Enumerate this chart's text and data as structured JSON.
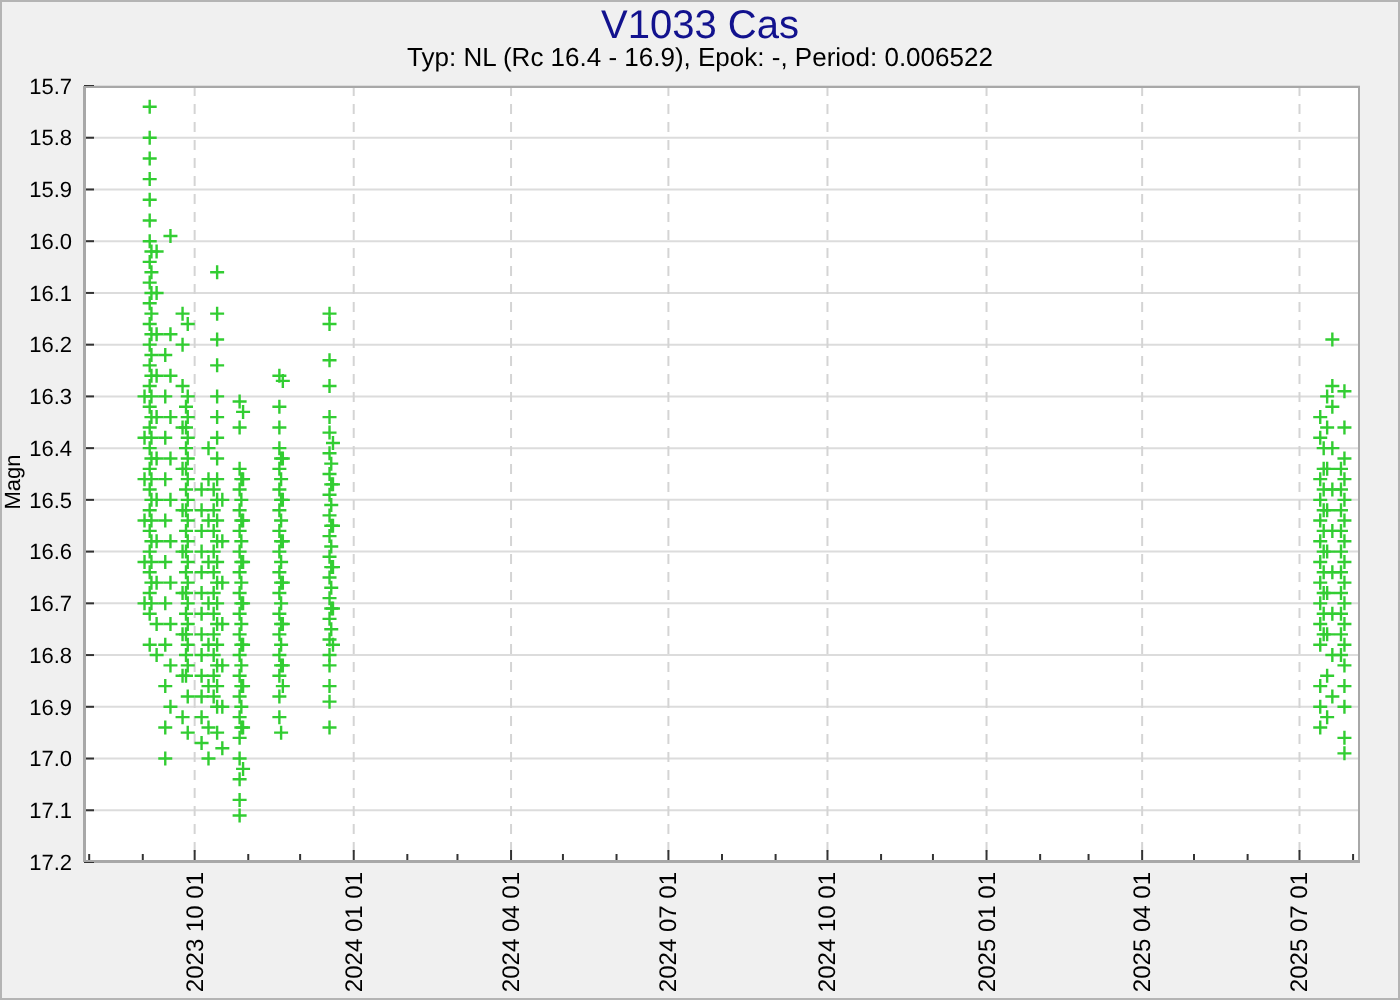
{
  "chart_data": {
    "type": "scatter",
    "title": "V1033 Cas",
    "subtitle": "Typ: NL (Rc 16.4 - 16.9), Epok: -, Period: 0.006522",
    "ylabel": "Magn",
    "xlim": [
      "2023-07-29",
      "2025-08-05"
    ],
    "xticks": [
      {
        "value": "2023-08-01",
        "label": null
      },
      {
        "value": "2023-09-01",
        "label": null
      },
      {
        "value": "2023-10-01",
        "label": "2023 10 01"
      },
      {
        "value": "2023-11-01",
        "label": null
      },
      {
        "value": "2023-12-01",
        "label": null
      },
      {
        "value": "2024-01-01",
        "label": "2024 01 01"
      },
      {
        "value": "2024-02-01",
        "label": null
      },
      {
        "value": "2024-03-01",
        "label": null
      },
      {
        "value": "2024-04-01",
        "label": "2024 04 01"
      },
      {
        "value": "2024-05-01",
        "label": null
      },
      {
        "value": "2024-06-01",
        "label": null
      },
      {
        "value": "2024-07-01",
        "label": "2024 07 01"
      },
      {
        "value": "2024-08-01",
        "label": null
      },
      {
        "value": "2024-09-01",
        "label": null
      },
      {
        "value": "2024-10-01",
        "label": "2024 10 01"
      },
      {
        "value": "2024-11-01",
        "label": null
      },
      {
        "value": "2024-12-01",
        "label": null
      },
      {
        "value": "2025-01-01",
        "label": "2025 01 01"
      },
      {
        "value": "2025-02-01",
        "label": null
      },
      {
        "value": "2025-03-01",
        "label": null
      },
      {
        "value": "2025-04-01",
        "label": "2025 04 01"
      },
      {
        "value": "2025-05-01",
        "label": null
      },
      {
        "value": "2025-06-01",
        "label": null
      },
      {
        "value": "2025-07-01",
        "label": "2025 07 01"
      },
      {
        "value": "2025-08-01",
        "label": null
      }
    ],
    "ylim": [
      17.2,
      15.7
    ],
    "yticks": [
      15.7,
      15.8,
      15.9,
      {
        "value": 16,
        "label": "16.0"
      },
      16.1,
      16.2,
      16.3,
      16.4,
      16.5,
      16.6,
      16.7,
      16.8,
      16.9,
      {
        "value": 17,
        "label": "17.0"
      },
      17.1,
      17.2
    ],
    "grid": true,
    "marker": "cross",
    "series": [
      {
        "color": "#32cd32",
        "x": [
          "2023-09-05",
          "2023-09-05",
          "2023-09-05",
          "2023-09-05",
          "2023-09-05",
          "2023-09-05",
          "2023-09-05",
          "2023-09-05",
          "2023-09-05",
          "2023-09-05",
          "2023-09-05",
          "2023-09-05",
          "2023-09-05",
          "2023-09-05",
          "2023-09-05",
          "2023-09-05",
          "2023-09-05",
          "2023-09-05",
          "2023-09-05",
          "2023-09-05",
          "2023-09-05",
          "2023-09-05",
          "2023-09-05",
          "2023-09-05",
          "2023-09-05",
          "2023-09-05",
          "2023-09-09",
          "2023-09-09",
          "2023-09-09",
          "2023-09-09",
          "2023-09-09",
          "2023-09-09",
          "2023-09-09",
          "2023-09-09",
          "2023-09-09",
          "2023-09-09",
          "2023-09-09",
          "2023-09-02",
          "2023-09-02",
          "2023-09-02",
          "2023-09-02",
          "2023-09-02",
          "2023-09-02",
          "2023-09-14",
          "2023-09-14",
          "2023-09-14",
          "2023-09-14",
          "2023-09-14",
          "2023-09-14",
          "2023-09-14",
          "2023-09-14",
          "2023-09-14",
          "2023-09-14",
          "2023-09-14",
          "2023-09-17",
          "2023-09-17",
          "2023-09-17",
          "2023-09-17",
          "2023-09-17",
          "2023-09-17",
          "2023-09-17",
          "2023-09-17",
          "2023-09-17",
          "2023-09-17",
          "2023-09-17",
          "2023-09-24",
          "2023-09-24",
          "2023-09-24",
          "2023-09-24",
          "2023-09-24",
          "2023-09-24",
          "2023-09-24",
          "2023-09-24",
          "2023-09-24",
          "2023-09-24",
          "2023-09-24",
          "2023-09-27",
          "2023-09-27",
          "2023-09-27",
          "2023-09-27",
          "2023-09-27",
          "2023-09-27",
          "2023-09-27",
          "2023-09-27",
          "2023-09-27",
          "2023-09-27",
          "2023-09-27",
          "2023-09-27",
          "2023-09-27",
          "2023-09-27",
          "2023-09-27",
          "2023-09-27",
          "2023-09-27",
          "2023-10-05",
          "2023-10-05",
          "2023-10-05",
          "2023-10-05",
          "2023-10-05",
          "2023-10-05",
          "2023-10-05",
          "2023-10-05",
          "2023-10-05",
          "2023-10-05",
          "2023-10-05",
          "2023-10-05",
          "2023-10-05",
          "2023-10-09",
          "2023-10-09",
          "2023-10-09",
          "2023-10-09",
          "2023-10-09",
          "2023-10-09",
          "2023-10-09",
          "2023-10-09",
          "2023-10-09",
          "2023-10-14",
          "2023-10-14",
          "2023-10-14",
          "2023-10-14",
          "2023-10-14",
          "2023-10-14",
          "2023-10-14",
          "2023-10-14",
          "2023-10-14",
          "2023-10-14",
          "2023-10-14",
          "2023-10-14",
          "2023-10-14",
          "2023-10-14",
          "2023-10-14",
          "2023-10-14",
          "2023-10-14",
          "2023-10-14",
          "2023-10-14",
          "2023-10-14",
          "2023-10-14",
          "2023-10-17",
          "2023-10-17",
          "2023-10-17",
          "2023-10-17",
          "2023-10-17",
          "2023-10-17",
          "2023-10-17",
          "2023-10-27",
          "2023-10-27",
          "2023-10-27",
          "2023-10-27",
          "2023-10-27",
          "2023-10-27",
          "2023-10-27",
          "2023-10-27",
          "2023-10-27",
          "2023-10-27",
          "2023-10-27",
          "2023-10-27",
          "2023-10-27",
          "2023-10-27",
          "2023-10-27",
          "2023-10-27",
          "2023-10-27",
          "2023-10-27",
          "2023-10-27",
          "2023-10-27",
          "2023-10-29",
          "2023-10-29",
          "2023-10-29",
          "2023-10-29",
          "2023-10-29",
          "2023-10-29",
          "2023-10-29",
          "2023-10-29",
          "2023-10-29",
          "2023-11-19",
          "2023-11-19",
          "2023-11-19",
          "2023-11-19",
          "2023-11-19",
          "2023-11-19",
          "2023-11-19",
          "2023-11-19",
          "2023-11-19",
          "2023-11-19",
          "2023-11-19",
          "2023-11-19",
          "2023-11-19",
          "2023-11-19",
          "2023-11-19",
          "2023-11-19",
          "2023-11-19",
          "2023-11-21",
          "2023-11-21",
          "2023-11-21",
          "2023-11-21",
          "2023-11-21",
          "2023-11-21",
          "2023-11-21",
          "2023-11-21",
          "2023-12-18",
          "2023-12-18",
          "2023-12-18",
          "2023-12-18",
          "2023-12-18",
          "2023-12-18",
          "2023-12-18",
          "2023-12-18",
          "2023-12-18",
          "2023-12-18",
          "2023-12-18",
          "2023-12-18",
          "2023-12-18",
          "2023-12-18",
          "2023-12-18",
          "2023-12-18",
          "2023-12-18",
          "2023-12-18",
          "2023-12-18",
          "2023-12-18",
          "2023-12-18",
          "2023-12-20",
          "2023-12-20",
          "2023-12-20",
          "2023-12-20",
          "2023-12-20",
          "2023-12-20",
          "2025-07-13",
          "2025-07-13",
          "2025-07-13",
          "2025-07-13",
          "2025-07-13",
          "2025-07-13",
          "2025-07-13",
          "2025-07-13",
          "2025-07-13",
          "2025-07-13",
          "2025-07-13",
          "2025-07-13",
          "2025-07-13",
          "2025-07-13",
          "2025-07-17",
          "2025-07-17",
          "2025-07-17",
          "2025-07-17",
          "2025-07-17",
          "2025-07-17",
          "2025-07-17",
          "2025-07-17",
          "2025-07-17",
          "2025-07-20",
          "2025-07-20",
          "2025-07-20",
          "2025-07-20",
          "2025-07-20",
          "2025-07-20",
          "2025-07-20",
          "2025-07-20",
          "2025-07-20",
          "2025-07-20",
          "2025-07-27",
          "2025-07-27",
          "2025-07-27",
          "2025-07-27",
          "2025-07-27",
          "2025-07-27",
          "2025-07-27",
          "2025-07-27",
          "2025-07-27",
          "2025-07-27",
          "2025-07-27",
          "2025-07-27",
          "2025-07-27",
          "2025-07-27",
          "2025-07-27",
          "2025-07-27",
          "2025-07-27",
          "2023-09-06",
          "2023-09-06",
          "2023-09-06",
          "2023-09-06",
          "2023-09-06",
          "2023-09-06",
          "2023-09-06",
          "2023-09-06",
          "2023-09-06",
          "2023-09-06",
          "2023-09-06",
          "2023-09-06",
          "2023-09-06",
          "2023-09-06",
          "2023-09-06",
          "2023-09-06",
          "2023-09-06",
          "2023-09-06",
          "2023-09-26",
          "2023-09-26",
          "2023-09-26",
          "2023-09-26",
          "2023-09-26",
          "2023-09-26",
          "2023-09-26",
          "2023-09-26",
          "2023-09-26",
          "2023-09-26",
          "2023-09-26",
          "2023-09-26",
          "2023-09-26",
          "2023-09-26",
          "2023-10-12",
          "2023-10-12",
          "2023-10-12",
          "2023-10-12",
          "2023-10-12",
          "2023-10-12",
          "2023-10-12",
          "2023-10-12",
          "2023-10-12",
          "2023-10-12",
          "2023-10-12",
          "2023-10-28",
          "2023-10-28",
          "2023-10-28",
          "2023-10-28",
          "2023-10-28",
          "2023-10-28",
          "2023-10-28",
          "2023-10-28",
          "2023-10-28",
          "2023-10-28",
          "2023-10-28",
          "2023-10-28",
          "2023-10-28",
          "2023-11-20",
          "2023-11-20",
          "2023-11-20",
          "2023-11-20",
          "2023-11-20",
          "2023-11-20",
          "2023-11-20",
          "2023-11-20",
          "2023-11-20",
          "2023-11-20",
          "2023-11-20",
          "2023-11-20",
          "2023-12-19",
          "2023-12-19",
          "2023-12-19",
          "2023-12-19",
          "2023-12-19",
          "2023-12-19",
          "2023-12-19",
          "2023-12-19",
          "2023-12-19",
          "2025-07-15",
          "2025-07-15",
          "2025-07-15",
          "2025-07-15",
          "2025-07-15",
          "2025-07-15",
          "2025-07-15",
          "2025-07-15",
          "2025-07-15",
          "2025-07-15",
          "2025-07-25",
          "2025-07-25",
          "2025-07-25",
          "2025-07-25",
          "2025-07-25",
          "2025-07-25",
          "2025-07-25",
          "2025-07-25",
          "2025-07-25",
          "2025-07-25"
        ],
        "values": [
          15.74,
          15.8,
          15.84,
          15.88,
          15.92,
          15.96,
          16.0,
          16.04,
          16.08,
          16.12,
          16.16,
          16.2,
          16.24,
          16.28,
          16.32,
          16.36,
          16.4,
          16.44,
          16.48,
          16.52,
          16.56,
          16.6,
          16.64,
          16.68,
          16.72,
          16.78,
          16.02,
          16.1,
          16.18,
          16.26,
          16.34,
          16.42,
          16.5,
          16.58,
          16.66,
          16.74,
          16.8,
          16.3,
          16.38,
          16.46,
          16.54,
          16.62,
          16.7,
          16.22,
          16.3,
          16.38,
          16.46,
          16.54,
          16.62,
          16.7,
          16.78,
          16.86,
          16.94,
          17.0,
          15.99,
          16.18,
          16.26,
          16.34,
          16.42,
          16.5,
          16.58,
          16.66,
          16.74,
          16.82,
          16.9,
          16.14,
          16.2,
          16.28,
          16.36,
          16.44,
          16.52,
          16.6,
          16.68,
          16.76,
          16.84,
          16.92,
          16.16,
          16.3,
          16.34,
          16.38,
          16.42,
          16.46,
          16.5,
          16.54,
          16.58,
          16.62,
          16.66,
          16.7,
          16.74,
          16.78,
          16.82,
          16.88,
          16.95,
          16.48,
          16.52,
          16.56,
          16.6,
          16.64,
          16.68,
          16.72,
          16.76,
          16.8,
          16.84,
          16.88,
          16.92,
          16.97,
          16.4,
          16.46,
          16.54,
          16.62,
          16.7,
          16.78,
          16.86,
          16.94,
          17.0,
          16.06,
          16.14,
          16.19,
          16.24,
          16.3,
          16.34,
          16.38,
          16.42,
          16.46,
          16.5,
          16.54,
          16.58,
          16.62,
          16.66,
          16.7,
          16.74,
          16.78,
          16.82,
          16.86,
          16.9,
          16.95,
          16.5,
          16.58,
          16.66,
          16.74,
          16.82,
          16.9,
          16.98,
          16.31,
          16.36,
          16.44,
          16.48,
          16.52,
          16.56,
          16.6,
          16.64,
          16.68,
          16.72,
          16.76,
          16.8,
          16.84,
          16.88,
          16.92,
          16.96,
          17.0,
          17.04,
          17.08,
          17.11,
          16.33,
          16.46,
          16.54,
          16.62,
          16.7,
          16.78,
          16.86,
          16.94,
          17.02,
          16.26,
          16.32,
          16.36,
          16.4,
          16.44,
          16.48,
          16.52,
          16.56,
          16.6,
          16.64,
          16.68,
          16.72,
          16.76,
          16.8,
          16.84,
          16.88,
          16.92,
          16.27,
          16.42,
          16.5,
          16.58,
          16.66,
          16.74,
          16.82,
          16.86,
          16.14,
          16.16,
          16.23,
          16.28,
          16.34,
          16.37,
          16.41,
          16.45,
          16.49,
          16.53,
          16.57,
          16.61,
          16.65,
          16.69,
          16.73,
          16.77,
          16.8,
          16.82,
          16.86,
          16.89,
          16.94,
          16.39,
          16.47,
          16.55,
          16.63,
          16.71,
          16.78,
          16.34,
          16.38,
          16.46,
          16.5,
          16.54,
          16.58,
          16.62,
          16.66,
          16.7,
          16.74,
          16.78,
          16.86,
          16.9,
          16.94,
          16.3,
          16.36,
          16.44,
          16.52,
          16.6,
          16.68,
          16.76,
          16.84,
          16.92,
          16.19,
          16.28,
          16.32,
          16.4,
          16.48,
          16.56,
          16.64,
          16.72,
          16.8,
          16.88,
          16.29,
          16.36,
          16.42,
          16.46,
          16.5,
          16.54,
          16.58,
          16.62,
          16.66,
          16.7,
          16.74,
          16.78,
          16.82,
          16.86,
          16.9,
          16.96,
          16.99,
          16.02,
          16.06,
          16.1,
          16.14,
          16.18,
          16.22,
          16.26,
          16.3,
          16.34,
          16.38,
          16.42,
          16.46,
          16.5,
          16.54,
          16.58,
          16.62,
          16.66,
          16.7,
          16.32,
          16.36,
          16.4,
          16.44,
          16.48,
          16.52,
          16.56,
          16.6,
          16.64,
          16.68,
          16.72,
          16.76,
          16.8,
          16.84,
          16.48,
          16.52,
          16.56,
          16.6,
          16.64,
          16.68,
          16.72,
          16.76,
          16.8,
          16.84,
          16.88,
          16.46,
          16.5,
          16.54,
          16.58,
          16.62,
          16.66,
          16.7,
          16.74,
          16.78,
          16.82,
          16.86,
          16.9,
          16.94,
          16.42,
          16.46,
          16.5,
          16.54,
          16.58,
          16.62,
          16.66,
          16.7,
          16.74,
          16.78,
          16.82,
          16.95,
          16.43,
          16.47,
          16.51,
          16.55,
          16.59,
          16.63,
          16.67,
          16.71,
          16.75,
          16.4,
          16.44,
          16.48,
          16.52,
          16.56,
          16.6,
          16.64,
          16.68,
          16.72,
          16.76,
          16.44,
          16.48,
          16.52,
          16.56,
          16.6,
          16.64,
          16.68,
          16.72,
          16.76,
          16.8
        ]
      }
    ]
  }
}
